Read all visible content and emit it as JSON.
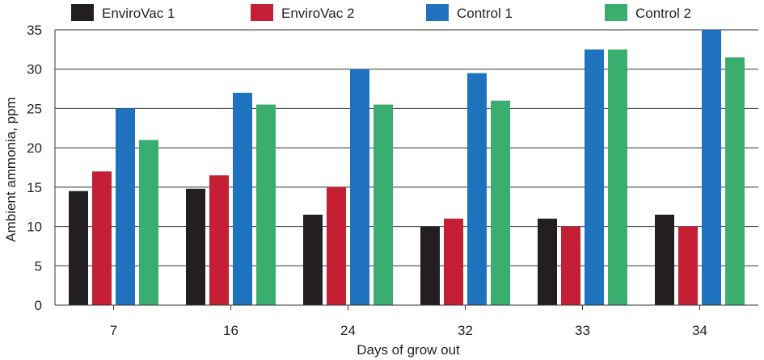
{
  "chart_data": {
    "type": "bar",
    "title": "",
    "xlabel": "Days of grow out",
    "ylabel": "Ambient ammonia, ppm",
    "categories": [
      "7",
      "16",
      "24",
      "32",
      "33",
      "34"
    ],
    "ylim": [
      0,
      35
    ],
    "yticks": [
      0,
      5,
      10,
      15,
      20,
      25,
      30,
      35
    ],
    "grid": "horizontal",
    "legend_position": "top",
    "series": [
      {
        "name": "EnviroVac 1",
        "color": "#231f20",
        "values": [
          14.5,
          14.8,
          11.5,
          10,
          11,
          11.5
        ]
      },
      {
        "name": "EnviroVac 2",
        "color": "#c41f35",
        "values": [
          17,
          16.5,
          15,
          11,
          10,
          10
        ]
      },
      {
        "name": "Control 1",
        "color": "#1f73be",
        "values": [
          25,
          27,
          30,
          29.5,
          32.5,
          35
        ]
      },
      {
        "name": "Control 2",
        "color": "#3aae6e",
        "values": [
          21,
          25.5,
          25.5,
          26,
          32.5,
          31.5
        ]
      }
    ]
  }
}
